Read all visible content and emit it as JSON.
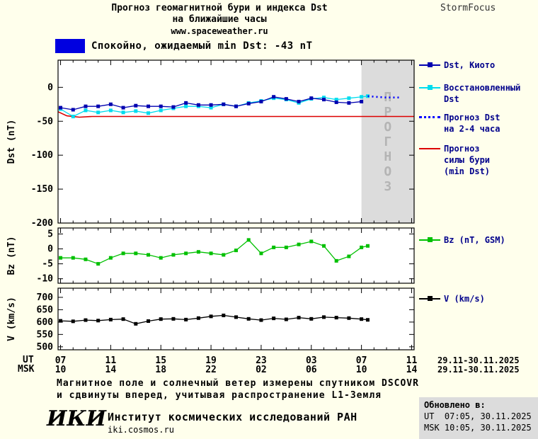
{
  "header": {
    "title_line1": "Прогноз геомагнитной бури и индекса Dst",
    "title_line2": "на ближайшие часы",
    "website": "www.spaceweather.ru",
    "brand": "StormFocus"
  },
  "banner": {
    "color": "#0000e0",
    "text": "Спокойно, ожидаемый min Dst: -43 nT"
  },
  "legend": {
    "text_color": "#00008b",
    "items": [
      {
        "name": "dst-kyoto",
        "label": "Dst, Киото",
        "color": "#0000b0",
        "style": "line-square"
      },
      {
        "name": "dst-restored",
        "label": "Восстановленный\nDst",
        "color": "#00dcee",
        "style": "line-square"
      },
      {
        "name": "dst-forecast",
        "label": "Прогноз Dst\nна 2-4 часа",
        "color": "#0000ff",
        "style": "dotted"
      },
      {
        "name": "storm-forecast",
        "label": "Прогноз\nсилы бури\n(min Dst)",
        "color": "#dd0000",
        "style": "line"
      },
      {
        "name": "bz",
        "label": "Bz (nT, GSM)",
        "color": "#00c000",
        "style": "line-square"
      },
      {
        "name": "v",
        "label": "V (km/s)",
        "color": "#000000",
        "style": "line-square"
      }
    ]
  },
  "chart_data": {
    "type": "line",
    "title": "Прогноз геомагнитной бури и индекса Dst на ближайшие часы",
    "xaxis": {
      "ut_prefix": "UT",
      "msk_prefix": "MSK",
      "tick_hours": [
        7,
        11,
        15,
        19,
        23,
        27,
        31,
        35
      ],
      "ut_labels": [
        "07",
        "11",
        "15",
        "19",
        "23",
        "03",
        "07",
        "11"
      ],
      "msk_labels": [
        "10",
        "14",
        "18",
        "22",
        "02",
        "06",
        "10",
        "14"
      ],
      "ut_date": "29.11-30.11.2025",
      "msk_date": "29.11-30.11.2025"
    },
    "panels": [
      {
        "name": "dst",
        "ylabel": "Dst (nT)",
        "xlim": [
          6.8,
          35.2
        ],
        "ylim": [
          -200,
          40
        ],
        "yticks": [
          0,
          -50,
          -100,
          -150,
          -200
        ],
        "forecast_region": {
          "x_start": 31,
          "label": "ПРОГНОЗ",
          "fill": "#dcdcdc",
          "text_color": "#b4b4b4"
        },
        "series": [
          {
            "name": "storm-forecast-min-dst",
            "color": "#dd0000",
            "width": 1.6,
            "marker": false,
            "points": [
              [
                6.8,
                -36
              ],
              [
                7.5,
                -42
              ],
              [
                8.5,
                -44
              ],
              [
                9.5,
                -43
              ],
              [
                35.2,
                -43
              ]
            ]
          },
          {
            "name": "dst-restored",
            "color": "#00dcee",
            "width": 1.3,
            "marker": true,
            "points": [
              [
                7,
                -32
              ],
              [
                8,
                -43
              ],
              [
                9,
                -34
              ],
              [
                10,
                -37
              ],
              [
                11,
                -34
              ],
              [
                12,
                -37
              ],
              [
                13,
                -35
              ],
              [
                14,
                -38
              ],
              [
                15,
                -34
              ],
              [
                16,
                -31
              ],
              [
                17,
                -28
              ],
              [
                18,
                -28
              ],
              [
                19,
                -30
              ],
              [
                20,
                -25
              ],
              [
                21,
                -28
              ],
              [
                22,
                -23
              ],
              [
                23,
                -20
              ],
              [
                24,
                -16
              ],
              [
                25,
                -18
              ],
              [
                26,
                -23
              ],
              [
                27,
                -17
              ],
              [
                28,
                -15
              ],
              [
                29,
                -18
              ],
              [
                30,
                -16
              ],
              [
                31,
                -14
              ],
              [
                31.5,
                -13
              ]
            ]
          },
          {
            "name": "dst-forecast-2-4h",
            "color": "#0000ff",
            "width": 2.6,
            "dash": "2 4",
            "marker": false,
            "points": [
              [
                31.5,
                -13
              ],
              [
                32.2,
                -14
              ],
              [
                33,
                -15
              ],
              [
                34,
                -15
              ]
            ]
          },
          {
            "name": "dst-kyoto",
            "color": "#0000b0",
            "width": 1.3,
            "marker": true,
            "points": [
              [
                7,
                -30
              ],
              [
                8,
                -33
              ],
              [
                9,
                -28
              ],
              [
                10,
                -28
              ],
              [
                11,
                -25
              ],
              [
                12,
                -30
              ],
              [
                13,
                -27
              ],
              [
                14,
                -28
              ],
              [
                15,
                -28
              ],
              [
                16,
                -29
              ],
              [
                17,
                -23
              ],
              [
                18,
                -26
              ],
              [
                19,
                -26
              ],
              [
                20,
                -25
              ],
              [
                21,
                -28
              ],
              [
                22,
                -24
              ],
              [
                23,
                -21
              ],
              [
                24,
                -14
              ],
              [
                25,
                -17
              ],
              [
                26,
                -21
              ],
              [
                27,
                -16
              ],
              [
                28,
                -18
              ],
              [
                29,
                -22
              ],
              [
                30,
                -23
              ],
              [
                31,
                -21
              ]
            ]
          }
        ]
      },
      {
        "name": "bz",
        "ylabel": "Bz (nT)",
        "xlim": [
          6.8,
          35.2
        ],
        "ylim": [
          -11.5,
          7
        ],
        "yticks": [
          5,
          0,
          -5,
          -10
        ],
        "series": [
          {
            "name": "bz-gsm",
            "color": "#00c000",
            "width": 1.3,
            "marker": true,
            "points": [
              [
                7,
                -3
              ],
              [
                8,
                -3
              ],
              [
                9,
                -3.5
              ],
              [
                10,
                -5
              ],
              [
                11,
                -3
              ],
              [
                12,
                -1.5
              ],
              [
                13,
                -1.5
              ],
              [
                14,
                -2
              ],
              [
                15,
                -3
              ],
              [
                16,
                -2
              ],
              [
                17,
                -1.5
              ],
              [
                18,
                -1
              ],
              [
                19,
                -1.5
              ],
              [
                20,
                -2
              ],
              [
                21,
                -0.5
              ],
              [
                22,
                3
              ],
              [
                23,
                -1.5
              ],
              [
                24,
                0.5
              ],
              [
                25,
                0.5
              ],
              [
                26,
                1.5
              ],
              [
                27,
                2.5
              ],
              [
                28,
                1
              ],
              [
                29,
                -4
              ],
              [
                30,
                -2.5
              ],
              [
                31,
                0.5
              ],
              [
                31.5,
                1
              ]
            ]
          }
        ]
      },
      {
        "name": "v",
        "ylabel": "V (km/s)",
        "xlim": [
          6.8,
          35.2
        ],
        "ylim": [
          488,
          737
        ],
        "yticks": [
          700,
          650,
          600,
          550,
          500
        ],
        "series": [
          {
            "name": "solar-wind-speed",
            "color": "#000000",
            "width": 1.3,
            "marker": true,
            "points": [
              [
                7,
                605
              ],
              [
                8,
                603
              ],
              [
                9,
                608
              ],
              [
                10,
                606
              ],
              [
                11,
                610
              ],
              [
                12,
                612
              ],
              [
                13,
                593
              ],
              [
                14,
                604
              ],
              [
                15,
                612
              ],
              [
                16,
                613
              ],
              [
                17,
                610
              ],
              [
                18,
                616
              ],
              [
                19,
                623
              ],
              [
                20,
                627
              ],
              [
                21,
                620
              ],
              [
                22,
                613
              ],
              [
                23,
                608
              ],
              [
                24,
                615
              ],
              [
                25,
                611
              ],
              [
                26,
                618
              ],
              [
                27,
                613
              ],
              [
                28,
                620
              ],
              [
                29,
                618
              ],
              [
                30,
                616
              ],
              [
                31,
                612
              ],
              [
                31.5,
                609
              ]
            ]
          }
        ]
      }
    ]
  },
  "footer": {
    "note_line1": "Магнитное поле и солнечный ветер измерены спутником DSCOVR",
    "note_line2": "и сдвинуты вперед, учитывая распространение L1-Земля",
    "logo": "ИКИ",
    "institute": "Институт космических исследований РАН",
    "url": "iki.cosmos.ru",
    "updated_title": "Обновлено в:",
    "updated_ut": "UT  07:05, 30.11.2025",
    "updated_msk": "MSK 10:05, 30.11.2025"
  }
}
